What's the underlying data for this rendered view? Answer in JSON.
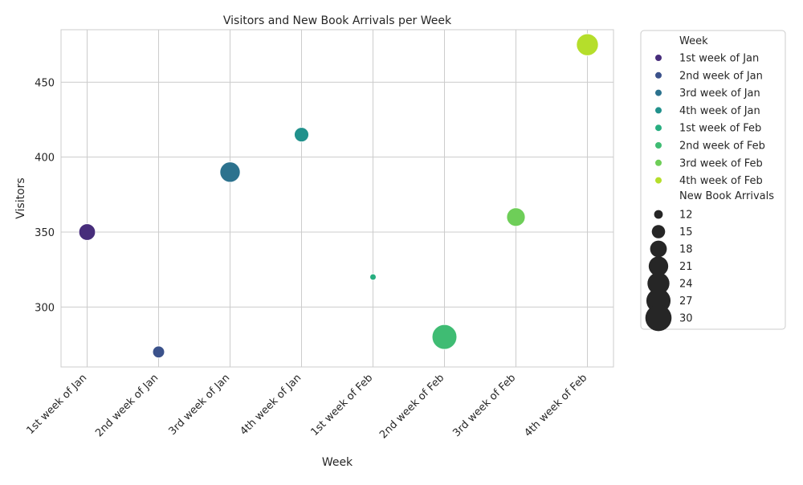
{
  "chart_data": {
    "type": "scatter",
    "title": "Visitors and New Book Arrivals per Week",
    "xlabel": "Week",
    "ylabel": "Visitors",
    "categories": [
      "1st week of Jan",
      "2nd week of Jan",
      "3rd week of Jan",
      "4th week of Jan",
      "1st week of Feb",
      "2nd week of Feb",
      "3rd week of Feb",
      "4th week of Feb"
    ],
    "visitors": [
      350,
      270,
      390,
      415,
      320,
      280,
      360,
      475
    ],
    "new_book_arrivals": [
      18,
      14,
      22,
      16,
      11,
      28,
      20,
      24
    ],
    "colors": [
      "#472d7b",
      "#3b528b",
      "#2c728e",
      "#21918c",
      "#28ae80",
      "#3fbc73",
      "#6ece58",
      "#b5de2b"
    ],
    "ylim": [
      260,
      485
    ],
    "yticks": [
      300,
      350,
      400,
      450
    ],
    "grid": true,
    "legend": {
      "placement": "outside-right",
      "hue_title": "Week",
      "size_title": "New Book Arrivals",
      "size_ticks": [
        12,
        15,
        18,
        21,
        24,
        27,
        30
      ]
    }
  }
}
